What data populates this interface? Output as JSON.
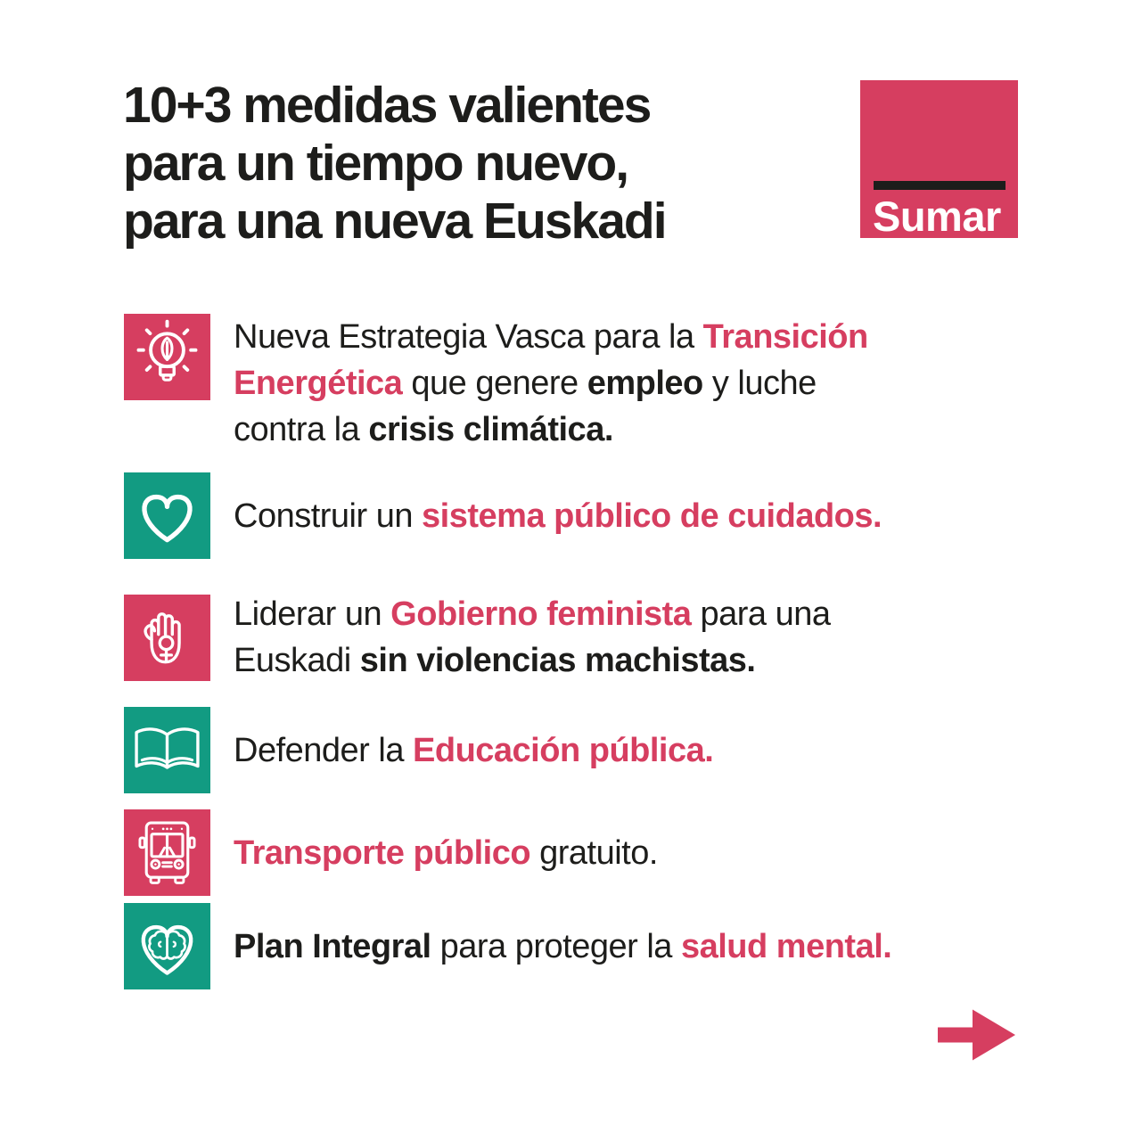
{
  "colors": {
    "pink": "#d63e60",
    "teal": "#129b82",
    "ink": "#1d1d1b",
    "background": "#ffffff"
  },
  "header": {
    "title_lines": [
      "10+3 medidas valientes",
      "para un tiempo nuevo,",
      "para una nueva Euskadi"
    ],
    "logo": {
      "label": "Sumar"
    }
  },
  "measures": [
    {
      "icon": "lightbulb-leaf-icon",
      "tile": "pink",
      "segments": [
        {
          "text": "Nueva Estrategia Vasca para la ",
          "style": "plain"
        },
        {
          "text": "Transición\nEnergética",
          "style": "accent"
        },
        {
          "text": " que genere ",
          "style": "plain"
        },
        {
          "text": "empleo",
          "style": "strong"
        },
        {
          "text": " y luche\ncontra la ",
          "style": "plain"
        },
        {
          "text": "crisis climática.",
          "style": "strong"
        }
      ]
    },
    {
      "icon": "heart-icon",
      "tile": "teal",
      "segments": [
        {
          "text": "Construir un ",
          "style": "plain"
        },
        {
          "text": "sistema público de cuidados.",
          "style": "accent"
        }
      ]
    },
    {
      "icon": "hand-female-icon",
      "tile": "pink",
      "segments": [
        {
          "text": "Liderar un ",
          "style": "plain"
        },
        {
          "text": "Gobierno feminista",
          "style": "accent"
        },
        {
          "text": " para una\nEuskadi ",
          "style": "plain"
        },
        {
          "text": "sin violencias machistas.",
          "style": "strong"
        }
      ]
    },
    {
      "icon": "open-book-icon",
      "tile": "teal",
      "segments": [
        {
          "text": "Defender la ",
          "style": "plain"
        },
        {
          "text": "Educación pública.",
          "style": "accent"
        }
      ]
    },
    {
      "icon": "bus-icon",
      "tile": "pink",
      "segments": [
        {
          "text": "Transporte público",
          "style": "accent"
        },
        {
          "text": " gratuito.",
          "style": "plain"
        }
      ]
    },
    {
      "icon": "heart-brain-icon",
      "tile": "teal",
      "segments": [
        {
          "text": "Plan Integral",
          "style": "strong"
        },
        {
          "text": " para proteger la ",
          "style": "plain"
        },
        {
          "text": "salud mental.",
          "style": "accent"
        }
      ]
    }
  ],
  "footer": {
    "next_arrow_icon": "arrow-right-icon"
  }
}
